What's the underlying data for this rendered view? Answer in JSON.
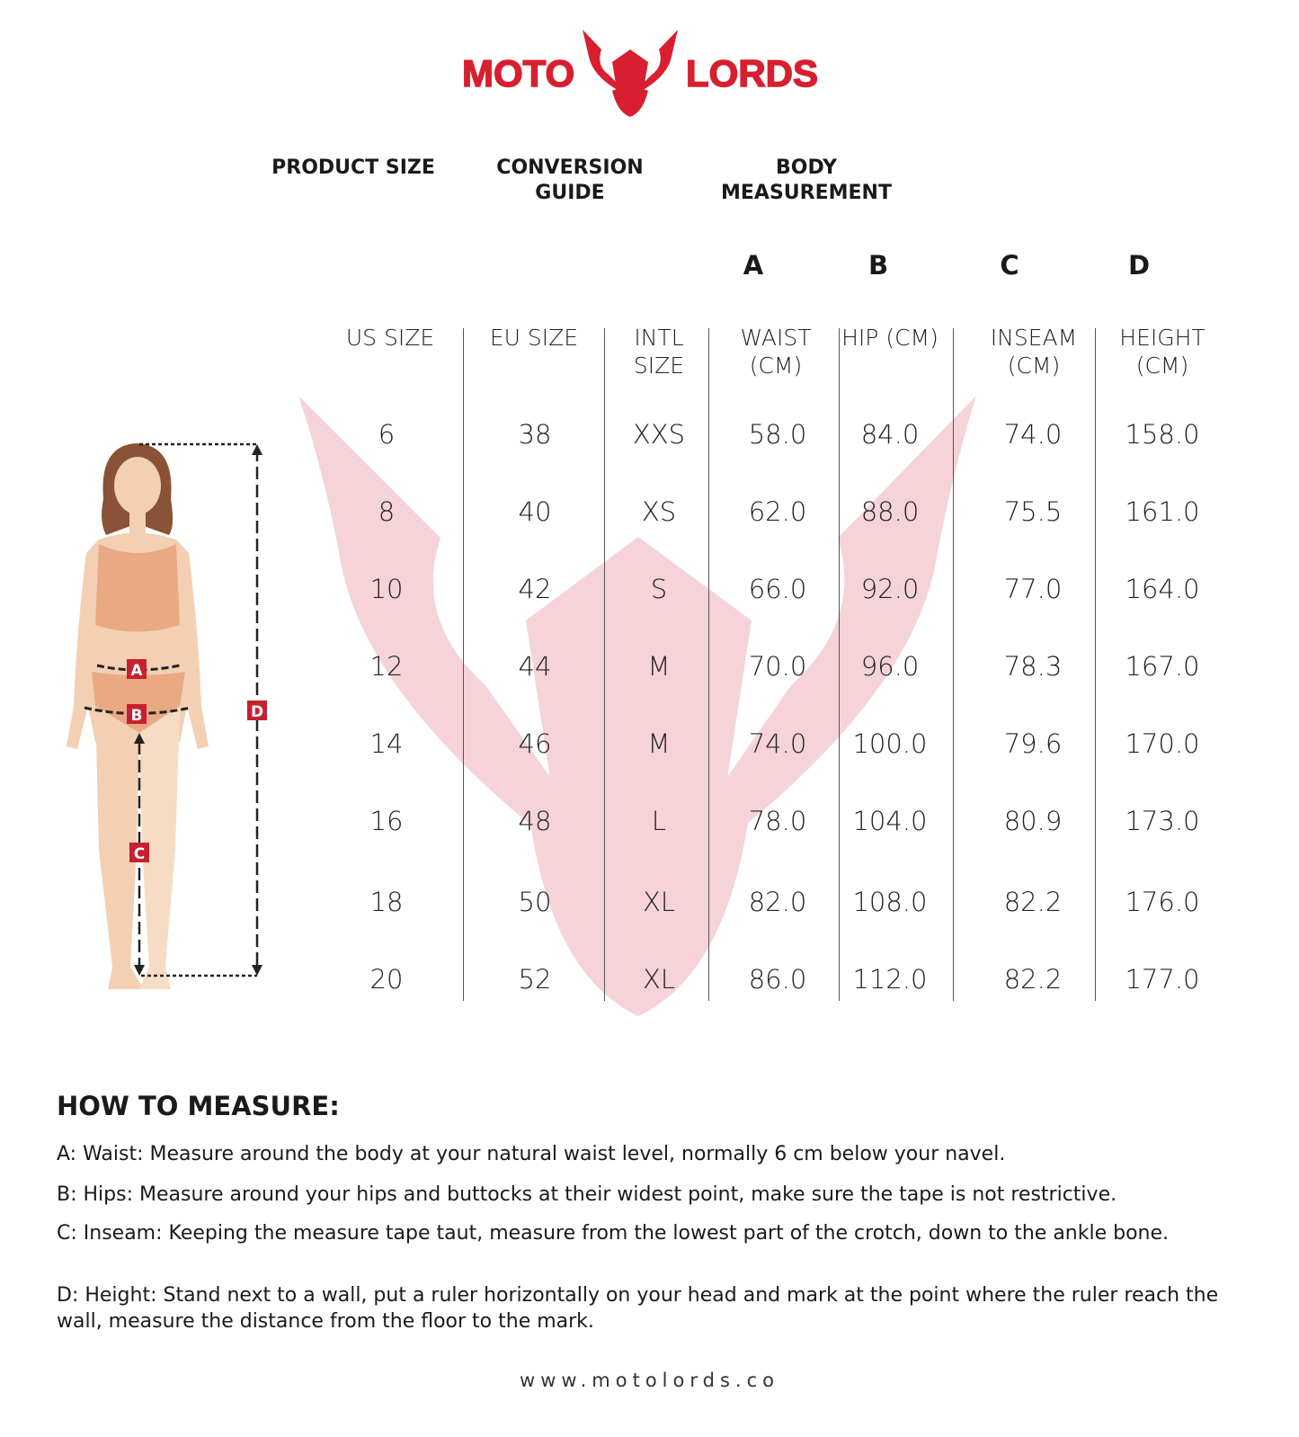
{
  "brand": {
    "left": "MOTO",
    "right": "LORDS",
    "color": "#d81f2f"
  },
  "groups": {
    "product": "PRODUCT SIZE",
    "conversion": "CONVERSION GUIDE",
    "body": "BODY MEASUREMENT"
  },
  "letters": [
    "A",
    "B",
    "C",
    "D"
  ],
  "columns": [
    "US SIZE",
    "EU SIZE",
    "INTL SIZE",
    "WAIST (CM)",
    "HIP (CM)",
    "INSEAM (CM)",
    "HEIGHT (CM)"
  ],
  "rows": [
    [
      "6",
      "38",
      "XXS",
      "58.0",
      "84.0",
      "74.0",
      "158.0"
    ],
    [
      "8",
      "40",
      "XS",
      "62.0",
      "88.0",
      "75.5",
      "161.0"
    ],
    [
      "10",
      "42",
      "S",
      "66.0",
      "92.0",
      "77.0",
      "164.0"
    ],
    [
      "12",
      "44",
      "M",
      "70.0",
      "96.0",
      "78.3",
      "167.0"
    ],
    [
      "14",
      "46",
      "M",
      "74.0",
      "100.0",
      "79.6",
      "170.0"
    ],
    [
      "16",
      "48",
      "L",
      "78.0",
      "104.0",
      "80.9",
      "173.0"
    ],
    [
      "18",
      "50",
      "XL",
      "82.0",
      "108.0",
      "82.2",
      "176.0"
    ],
    [
      "20",
      "52",
      "XL",
      "86.0",
      "112.0",
      "82.2",
      "177.0"
    ]
  ],
  "figure_labels": [
    "A",
    "B",
    "C",
    "D"
  ],
  "how_to": {
    "title": "HOW TO MEASURE:",
    "items": [
      "A: Waist: Measure around the body at your natural waist level, normally 6 cm below your navel.",
      "B: Hips: Measure around your hips and buttocks at their widest point, make sure the tape is not restrictive.",
      "C: Inseam: Keeping the measure tape taut, measure from the lowest part of the crotch, down to the ankle bone.",
      "D: Height: Stand next to a wall, put a ruler horizontally on your head and mark at the point where the ruler reach the wall, measure the distance from the floor to the mark."
    ]
  },
  "website": "www.motolords.co"
}
